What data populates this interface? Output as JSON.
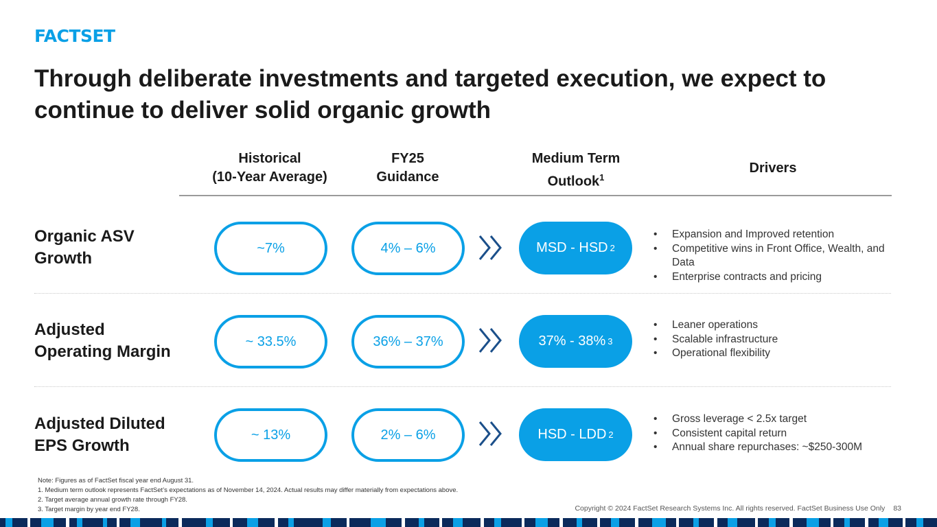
{
  "logo": "FACTSET",
  "title": "Through deliberate investments and targeted execution, we expect to continue to deliver solid organic growth",
  "columns": {
    "historical": [
      "Historical",
      "(10-Year Average)"
    ],
    "fy25": [
      "FY25",
      "Guidance"
    ],
    "medium": [
      "Medium Term",
      "Outlook"
    ],
    "medium_sup": "1",
    "drivers": "Drivers"
  },
  "rows": [
    {
      "label": [
        "Organic ASV",
        "Growth"
      ],
      "historical": "~7%",
      "fy25": "4% – 6%",
      "medium": "MSD - HSD",
      "medium_sup": "2",
      "drivers": [
        "Expansion and Improved retention",
        "Competitive wins in Front Office, Wealth, and Data",
        "Enterprise contracts and pricing"
      ]
    },
    {
      "label": [
        "Adjusted",
        "Operating Margin"
      ],
      "historical": "~ 33.5%",
      "fy25": "36% – 37%",
      "medium": "37% - 38%",
      "medium_sup": "3",
      "drivers": [
        "Leaner operations",
        "Scalable infrastructure",
        "Operational flexibility"
      ]
    },
    {
      "label": [
        "Adjusted Diluted",
        "EPS Growth"
      ],
      "historical": "~ 13%",
      "fy25": "2% – 6%",
      "medium": "HSD - LDD",
      "medium_sup": "2",
      "drivers": [
        "Gross leverage < 2.5x target",
        "Consistent capital return",
        "Annual share repurchases: ~$250-300M"
      ]
    }
  ],
  "notes": [
    "Note: Figures as of FactSet fiscal year end August 31.",
    "1. Medium term outlook represents FactSet’s expectations as of November 14, 2024. Actual results may differ materially from expectations above.",
    "2. Target average annual growth rate through FY28.",
    "3. Target margin by year end FY28."
  ],
  "copyright": "Copyright © 2024 FactSet Research Systems Inc. All rights reserved. FactSet Business Use Only",
  "page_number": "83",
  "colors": {
    "accent": "#0aa0e6",
    "chevron": "#1b4f8a",
    "navy": "#0b2a5b"
  }
}
